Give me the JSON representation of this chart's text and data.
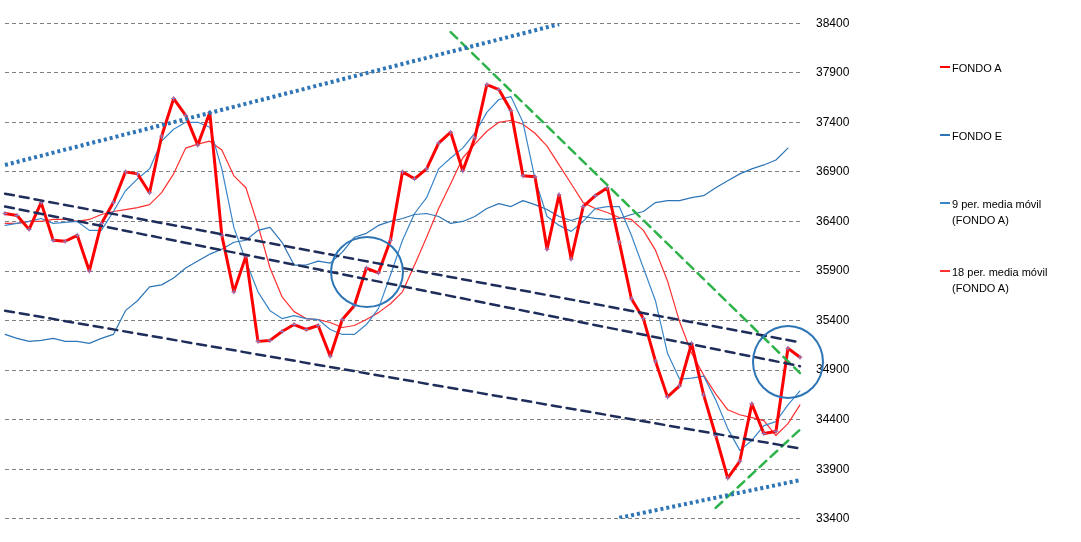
{
  "chart_data": {
    "type": "line",
    "categories": [
      null,
      null,
      null,
      null,
      null,
      null,
      null,
      null,
      null,
      null,
      null,
      null,
      null,
      null,
      null,
      null,
      null,
      null,
      null,
      null,
      null,
      null,
      null,
      null,
      null,
      null,
      null,
      null,
      null,
      null,
      null,
      null,
      null,
      null,
      null,
      null,
      null,
      null,
      null,
      null,
      null,
      null,
      null,
      null,
      null,
      null,
      null,
      null,
      null,
      null,
      null,
      null,
      null,
      null,
      null,
      null,
      null,
      null,
      null,
      null,
      null,
      null,
      null,
      null,
      null,
      null,
      null
    ],
    "series": [
      {
        "name": "FONDO A",
        "color": "#ff0000",
        "marker": "cross",
        "values": [
          36480,
          36460,
          36320,
          36590,
          36210,
          36200,
          36260,
          35900,
          36380,
          36590,
          36900,
          36880,
          36690,
          37260,
          37640,
          37470,
          37170,
          37500,
          36260,
          35690,
          36050,
          35190,
          35200,
          35290,
          35360,
          35310,
          35350,
          35040,
          35410,
          35550,
          35930,
          35880,
          36210,
          36900,
          36830,
          36930,
          37190,
          37300,
          36910,
          37240,
          37780,
          37730,
          37520,
          36860,
          36850,
          36120,
          36670,
          36020,
          36550,
          36660,
          36740,
          36190,
          35620,
          35420,
          34990,
          34630,
          34740,
          35170,
          34650,
          34240,
          33810,
          33980,
          34560,
          34260,
          34280,
          35120,
          35030
        ]
      },
      {
        "name": "FONDO E",
        "color": "#2e75b6",
        "values": [
          35260,
          35220,
          35190,
          35200,
          35220,
          35190,
          35190,
          35170,
          35220,
          35260,
          35500,
          35600,
          35740,
          35760,
          35830,
          35930,
          36000,
          36070,
          36120,
          36190,
          36210,
          36310,
          36340,
          36190,
          35960,
          35960,
          36000,
          35980,
          36090,
          36240,
          36280,
          36360,
          36400,
          36430,
          36470,
          36480,
          36450,
          36380,
          36400,
          36450,
          36530,
          36580,
          36550,
          36610,
          36570,
          36520,
          36450,
          36410,
          36450,
          36430,
          36420,
          36430,
          36470,
          36500,
          36590,
          36610,
          36610,
          36640,
          36660,
          36740,
          36810,
          36880,
          36930,
          36970,
          37020,
          37140,
          null
        ]
      },
      {
        "name": "9 per. media móvil (FONDO A)",
        "color": "#3a86c8",
        "values": [
          36360,
          36380,
          36400,
          36430,
          36380,
          36390,
          36400,
          36310,
          36310,
          36500,
          36710,
          36830,
          36930,
          37210,
          37330,
          37400,
          37400,
          37350,
          36930,
          36340,
          36000,
          35690,
          35500,
          35420,
          35450,
          35420,
          35410,
          35310,
          35260,
          35260,
          35360,
          35520,
          35860,
          36210,
          36480,
          36640,
          36930,
          37040,
          37140,
          37290,
          37500,
          37630,
          37660,
          37400,
          36830,
          36450,
          36360,
          36300,
          36400,
          36530,
          36550,
          36550,
          36260,
          35930,
          35600,
          35070,
          34810,
          34820,
          34840,
          34600,
          34310,
          34090,
          34190,
          34340,
          34380,
          34550,
          34690
        ]
      },
      {
        "name": "18 per. media móvil (FONDO A)",
        "color": "#ff3030",
        "values": [
          36380,
          36380,
          36400,
          36400,
          36420,
          36420,
          36400,
          36420,
          36470,
          36500,
          36520,
          36540,
          36570,
          36690,
          36880,
          37140,
          37180,
          37210,
          37120,
          36860,
          36740,
          36360,
          35930,
          35640,
          35490,
          35420,
          35410,
          35380,
          35330,
          35350,
          35410,
          35480,
          35570,
          35690,
          35960,
          36240,
          36530,
          36780,
          37040,
          37180,
          37310,
          37400,
          37420,
          37380,
          37290,
          37160,
          36970,
          36780,
          36590,
          36530,
          36490,
          36440,
          36420,
          36310,
          36110,
          35800,
          35390,
          35070,
          34850,
          34660,
          34500,
          34450,
          34420,
          34390,
          34240,
          34360,
          34550
        ]
      },
      {
        "color": "#2e75b6",
        "line_style": "dotted",
        "values": [
          36970,
          null,
          null,
          null,
          null,
          null,
          null,
          null,
          null,
          null,
          null,
          null,
          null,
          null,
          null,
          null,
          null,
          null,
          null,
          null,
          null,
          null,
          null,
          null,
          null,
          null,
          null,
          null,
          null,
          null,
          null,
          null,
          null,
          null,
          null,
          null,
          null,
          null,
          null,
          null,
          null,
          null,
          null,
          null,
          null,
          null,
          38390,
          null,
          null,
          null,
          null,
          null,
          null,
          null,
          null,
          null,
          null,
          null,
          null,
          null,
          null,
          null,
          null,
          null,
          null,
          null,
          null
        ]
      },
      {
        "color": "#2e75b6",
        "line_style": "dotted",
        "values": [
          null,
          null,
          null,
          null,
          null,
          null,
          null,
          null,
          null,
          null,
          null,
          null,
          null,
          null,
          null,
          null,
          null,
          null,
          null,
          null,
          null,
          null,
          null,
          null,
          null,
          null,
          null,
          null,
          null,
          null,
          null,
          null,
          null,
          null,
          null,
          null,
          null,
          null,
          null,
          null,
          null,
          null,
          null,
          null,
          null,
          null,
          null,
          null,
          null,
          null,
          null,
          33410,
          null,
          null,
          null,
          null,
          null,
          null,
          null,
          null,
          null,
          null,
          null,
          null,
          null,
          null,
          33790
        ]
      },
      {
        "color": "#1f2d5a",
        "line_style": "dashed",
        "values": [
          36680,
          null,
          null,
          null,
          null,
          null,
          null,
          null,
          null,
          null,
          null,
          null,
          null,
          null,
          null,
          null,
          null,
          null,
          null,
          null,
          null,
          null,
          null,
          null,
          null,
          null,
          null,
          null,
          null,
          null,
          null,
          null,
          null,
          null,
          null,
          null,
          null,
          null,
          null,
          null,
          null,
          null,
          null,
          null,
          null,
          null,
          null,
          null,
          null,
          null,
          null,
          null,
          null,
          null,
          null,
          null,
          null,
          null,
          null,
          null,
          null,
          null,
          null,
          null,
          null,
          null,
          35180
        ]
      },
      {
        "color": "#1f2d5a",
        "line_style": "dashed",
        "values": [
          36550,
          null,
          null,
          null,
          null,
          null,
          null,
          null,
          null,
          null,
          null,
          null,
          null,
          null,
          null,
          null,
          null,
          null,
          null,
          null,
          null,
          null,
          null,
          null,
          null,
          null,
          null,
          null,
          null,
          null,
          null,
          null,
          null,
          null,
          null,
          null,
          null,
          null,
          null,
          null,
          null,
          null,
          null,
          null,
          null,
          null,
          null,
          null,
          null,
          null,
          null,
          null,
          null,
          null,
          null,
          null,
          null,
          null,
          null,
          null,
          null,
          null,
          null,
          null,
          null,
          null,
          34940
        ]
      },
      {
        "color": "#1f2d5a",
        "line_style": "dashed",
        "values": [
          35500,
          null,
          null,
          null,
          null,
          null,
          null,
          null,
          null,
          null,
          null,
          null,
          null,
          null,
          null,
          null,
          null,
          null,
          null,
          null,
          null,
          null,
          null,
          null,
          null,
          null,
          null,
          null,
          null,
          null,
          null,
          null,
          null,
          null,
          null,
          null,
          null,
          null,
          null,
          null,
          null,
          null,
          null,
          null,
          null,
          null,
          null,
          null,
          null,
          null,
          null,
          null,
          null,
          null,
          null,
          null,
          null,
          null,
          null,
          null,
          null,
          null,
          null,
          null,
          null,
          null,
          34110
        ]
      },
      {
        "color": "#2db34a",
        "line_style": "dashed",
        "values": [
          null,
          null,
          null,
          null,
          null,
          null,
          null,
          null,
          null,
          null,
          null,
          null,
          null,
          null,
          null,
          null,
          null,
          null,
          null,
          null,
          null,
          null,
          null,
          null,
          null,
          null,
          null,
          null,
          null,
          null,
          null,
          null,
          null,
          null,
          null,
          null,
          null,
          38310,
          null,
          null,
          null,
          null,
          null,
          null,
          null,
          null,
          null,
          null,
          null,
          null,
          null,
          null,
          null,
          null,
          null,
          null,
          null,
          null,
          null,
          null,
          null,
          null,
          null,
          null,
          null,
          null,
          34870
        ]
      },
      {
        "color": "#2db34a",
        "line_style": "dashed",
        "values": [
          null,
          null,
          null,
          null,
          null,
          null,
          null,
          null,
          null,
          null,
          null,
          null,
          null,
          null,
          null,
          null,
          null,
          null,
          null,
          null,
          null,
          null,
          null,
          null,
          null,
          null,
          null,
          null,
          null,
          null,
          null,
          null,
          null,
          null,
          null,
          null,
          null,
          null,
          null,
          null,
          null,
          null,
          null,
          null,
          null,
          null,
          null,
          null,
          null,
          null,
          null,
          null,
          null,
          null,
          null,
          null,
          null,
          null,
          null,
          33510,
          null,
          null,
          null,
          null,
          null,
          null,
          34300
        ]
      }
    ],
    "ylim": [
      33400,
      38400
    ],
    "yticks": [
      33400,
      33900,
      34400,
      34900,
      35400,
      35900,
      36400,
      36900,
      37400,
      37900,
      38400
    ],
    "grid": "y",
    "legend": "right",
    "tick_labels": "y"
  }
}
